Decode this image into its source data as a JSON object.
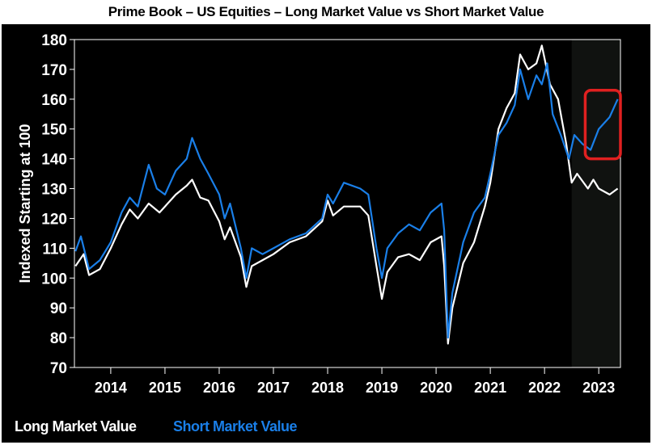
{
  "chart_data": {
    "type": "line",
    "title": "Prime Book – US Equities – Long Market Value vs Short Market Value",
    "xlabel": "",
    "ylabel": "Indexed Starting at 100",
    "ylim": [
      70,
      180
    ],
    "xlim": [
      2013.33,
      2023.4
    ],
    "yticks": [
      "70",
      "80",
      "90",
      "100",
      "110",
      "120",
      "130",
      "140",
      "150",
      "160",
      "170",
      "180"
    ],
    "xticks": [
      "2014",
      "2015",
      "2016",
      "2017",
      "2018",
      "2019",
      "2020",
      "2021",
      "2022",
      "2023"
    ],
    "grid": false,
    "legend_position": "bottom-left",
    "shaded_region": [
      2022.5,
      2023.4
    ],
    "highlight_box": {
      "x": [
        2022.75,
        2023.4
      ],
      "y": [
        140,
        163
      ],
      "color": "#e02020"
    },
    "series": [
      {
        "name": "Long Market Value",
        "color": "#ffffff",
        "x": [
          2013.35,
          2013.5,
          2013.6,
          2013.8,
          2014.0,
          2014.2,
          2014.35,
          2014.5,
          2014.7,
          2014.9,
          2015.0,
          2015.2,
          2015.4,
          2015.5,
          2015.65,
          2015.8,
          2016.0,
          2016.1,
          2016.2,
          2016.4,
          2016.5,
          2016.6,
          2016.8,
          2017.0,
          2017.3,
          2017.6,
          2017.9,
          2018.0,
          2018.1,
          2018.3,
          2018.6,
          2018.75,
          2018.9,
          2019.0,
          2019.1,
          2019.3,
          2019.5,
          2019.7,
          2019.9,
          2020.1,
          2020.15,
          2020.22,
          2020.3,
          2020.5,
          2020.7,
          2020.9,
          2021.0,
          2021.15,
          2021.3,
          2021.45,
          2021.55,
          2021.7,
          2021.85,
          2021.95,
          2022.1,
          2022.25,
          2022.4,
          2022.5,
          2022.6,
          2022.8,
          2022.9,
          2023.0,
          2023.2,
          2023.35
        ],
        "values": [
          104,
          108,
          101,
          103,
          110,
          118,
          123,
          120,
          125,
          122,
          124,
          128,
          131,
          133,
          127,
          126,
          119,
          113,
          117,
          107,
          97,
          104,
          106,
          108,
          112,
          114,
          119,
          126,
          121,
          124,
          124,
          121,
          104,
          93,
          102,
          107,
          108,
          106,
          112,
          114,
          104,
          78,
          90,
          105,
          112,
          124,
          132,
          150,
          157,
          162,
          175,
          170,
          172,
          178,
          165,
          160,
          145,
          132,
          135,
          130,
          133,
          130,
          128,
          130
        ]
      },
      {
        "name": "Short Market Value",
        "color": "#1a7fe8",
        "x": [
          2013.35,
          2013.45,
          2013.6,
          2013.8,
          2014.0,
          2014.2,
          2014.35,
          2014.5,
          2014.7,
          2014.85,
          2015.0,
          2015.2,
          2015.4,
          2015.5,
          2015.65,
          2015.8,
          2016.0,
          2016.1,
          2016.2,
          2016.4,
          2016.5,
          2016.6,
          2016.8,
          2017.0,
          2017.3,
          2017.6,
          2017.9,
          2018.0,
          2018.1,
          2018.3,
          2018.6,
          2018.75,
          2018.9,
          2019.0,
          2019.1,
          2019.3,
          2019.5,
          2019.7,
          2019.9,
          2020.1,
          2020.15,
          2020.22,
          2020.3,
          2020.5,
          2020.7,
          2020.9,
          2021.0,
          2021.15,
          2021.3,
          2021.45,
          2021.55,
          2021.7,
          2021.85,
          2021.95,
          2022.05,
          2022.15,
          2022.3,
          2022.45,
          2022.55,
          2022.7,
          2022.85,
          2023.0,
          2023.2,
          2023.35
        ],
        "values": [
          109,
          114,
          103,
          106,
          112,
          122,
          127,
          124,
          138,
          130,
          128,
          136,
          140,
          147,
          140,
          135,
          128,
          120,
          125,
          110,
          100,
          110,
          108,
          110,
          113,
          115,
          120,
          128,
          125,
          132,
          130,
          128,
          110,
          100,
          110,
          115,
          118,
          116,
          122,
          125,
          116,
          80,
          95,
          112,
          122,
          127,
          135,
          148,
          152,
          158,
          170,
          160,
          168,
          165,
          172,
          155,
          148,
          140,
          148,
          145,
          143,
          150,
          154,
          160
        ]
      }
    ]
  }
}
